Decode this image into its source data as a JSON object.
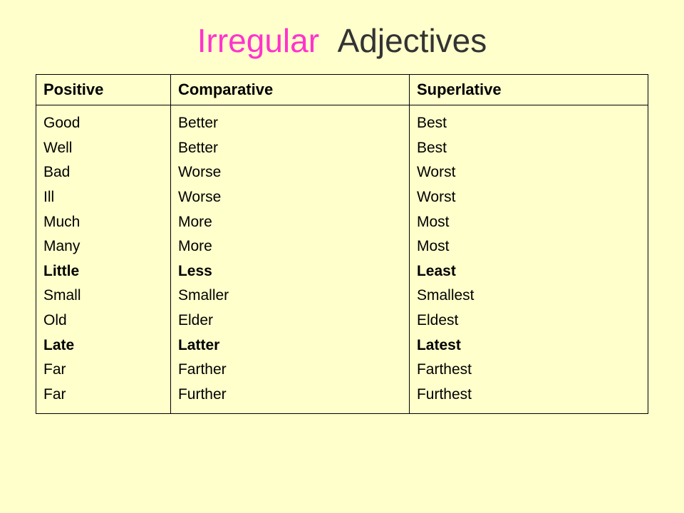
{
  "title": {
    "word1": "Irregular",
    "word2": "Adjectives",
    "word1_color": "#ff33cc",
    "word2_color": "#333333",
    "fontsize": 46
  },
  "background_color": "#ffffcc",
  "table": {
    "type": "table",
    "border_color": "#000000",
    "header_fontsize": 22,
    "cell_fontsize": 21,
    "columns": [
      {
        "label": "Positive",
        "width_pct": 22
      },
      {
        "label": "Comparative",
        "width_pct": 39
      },
      {
        "label": "Superlative",
        "width_pct": 39
      }
    ],
    "rows": [
      {
        "positive": "Good",
        "comparative": "Better",
        "superlative": "Best",
        "bold": false
      },
      {
        "positive": "Well",
        "comparative": "Better",
        "superlative": "Best",
        "bold": false
      },
      {
        "positive": "Bad",
        "comparative": "Worse",
        "superlative": "Worst",
        "bold": false
      },
      {
        "positive": "Ill",
        "comparative": "Worse",
        "superlative": "Worst",
        "bold": false
      },
      {
        "positive": "Much",
        "comparative": "More",
        "superlative": "Most",
        "bold": false
      },
      {
        "positive": "Many",
        "comparative": "More",
        "superlative": "Most",
        "bold": false
      },
      {
        "positive": "Little",
        "comparative": "Less",
        "superlative": "Least",
        "bold": true
      },
      {
        "positive": "Small",
        "comparative": "Smaller",
        "superlative": "Smallest",
        "bold": false
      },
      {
        "positive": "Old",
        "comparative": "Elder",
        "superlative": "Eldest",
        "bold": false
      },
      {
        "positive": "Late",
        "comparative": "Latter",
        "superlative": "Latest",
        "bold": true
      },
      {
        "positive": "Far",
        "comparative": "Farther",
        "superlative": "Farthest",
        "bold": false
      },
      {
        "positive": "Far",
        "comparative": "Further",
        "superlative": "Furthest",
        "bold": false
      }
    ]
  }
}
